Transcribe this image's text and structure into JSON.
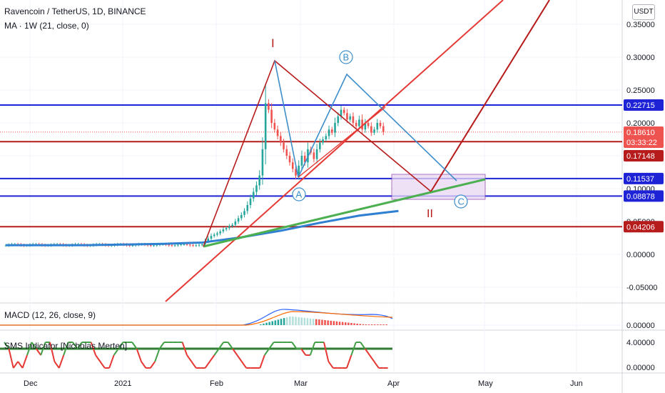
{
  "header": {
    "title": "Ravencoin / TetherUS, 1D, BINANCE",
    "ma_label": "MA · 1W (21, close, 0)",
    "currency_button": "USDT"
  },
  "colors": {
    "up": "#26a69a",
    "down": "#ef5350",
    "red_line": "#e53935",
    "dark_red": "#b71c1c",
    "blue_level": "#1e24d6",
    "ma_blue": "#2f80d0",
    "green_trend": "#4caf50",
    "pattern_blue": "#3d8ec9",
    "pattern_red": "#b71c1c",
    "zone_fill": "#e9d8f3",
    "zone_border": "#8e44ad"
  },
  "chart_data": [
    {
      "type": "line",
      "pane": "price",
      "title": "Ravencoin / TetherUS, 1D, BINANCE",
      "y_ticks": [
        "0.35000",
        "0.30000",
        "0.25000",
        "0.20000",
        "0.15000",
        "0.10000",
        "0.05000",
        "0.00000",
        "-0.05000"
      ],
      "y_tick_values": [
        0.35,
        0.3,
        0.25,
        0.2,
        0.15,
        0.1,
        0.05,
        0.0,
        -0.05
      ],
      "ylim": [
        -0.083,
        0.375
      ],
      "x_ticks": [
        "Dec",
        "2021",
        "Feb",
        "Mar",
        "Apr",
        "May",
        "Jun"
      ],
      "price_axis_labels": [
        {
          "text": "0.22715",
          "value": 0.22715,
          "color": "#1e24d6"
        },
        {
          "text": "0.18610",
          "value": 0.1861,
          "color": "#ef5350"
        },
        {
          "text": "03:33:22",
          "value": 0.1715,
          "color": "#ef5350"
        },
        {
          "text": "0.17148",
          "value": 0.17148,
          "color": "#b71c1c"
        },
        {
          "text": "0.11537",
          "value": 0.11537,
          "color": "#1e24d6"
        },
        {
          "text": "0.08878",
          "value": 0.08878,
          "color": "#1e24d6"
        },
        {
          "text": "0.04206",
          "value": 0.04206,
          "color": "#b71c1c"
        }
      ],
      "horizontal_levels": [
        {
          "value": 0.22715,
          "color": "#1e24d6"
        },
        {
          "value": 0.17148,
          "color": "#b71c1c"
        },
        {
          "value": 0.11537,
          "color": "#1e24d6"
        },
        {
          "value": 0.08878,
          "color": "#1e24d6"
        },
        {
          "value": 0.04206,
          "color": "#b71c1c"
        }
      ],
      "last_price": 0.1861,
      "wave_labels": [
        "I",
        "II",
        "A",
        "B",
        "C"
      ],
      "series": [
        {
          "name": "MA · 1W (21, close, 0)",
          "values": [
            0.014,
            0.014,
            0.014,
            0.015,
            0.016,
            0.018,
            0.026,
            0.036,
            0.048,
            0.059,
            0.066
          ]
        }
      ]
    },
    {
      "type": "bar",
      "pane": "macd",
      "title": "MACD (12, 26, close, 9)",
      "y_ticks": [
        "0.00000"
      ]
    },
    {
      "type": "line",
      "pane": "sms",
      "title": "SMS Indicator [Nicholas Merten]",
      "y_ticks": [
        "4.00000",
        "0.00000"
      ],
      "threshold": 3
    }
  ]
}
